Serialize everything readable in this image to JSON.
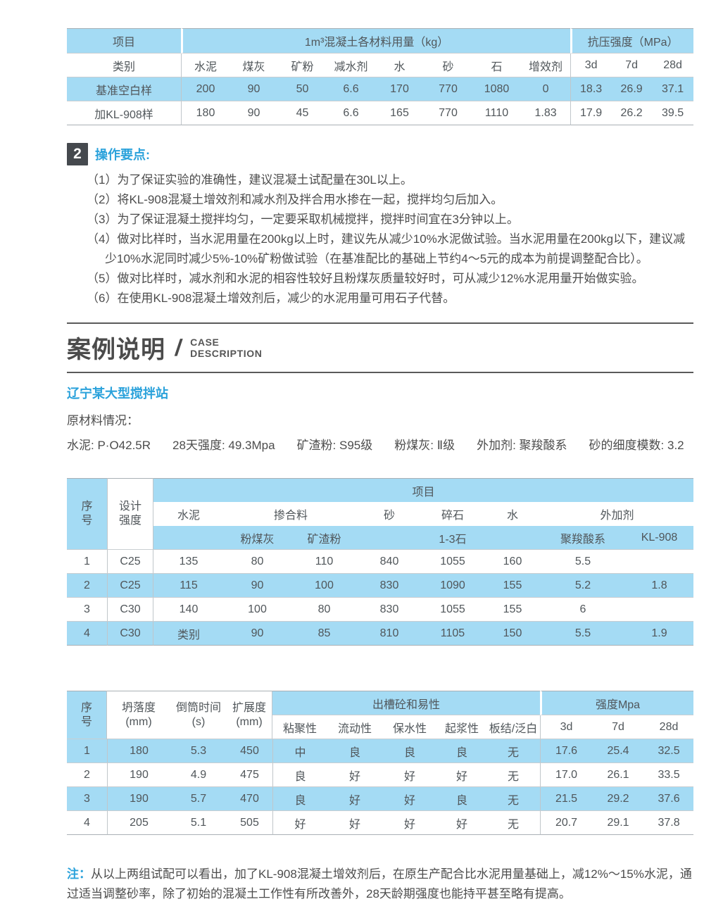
{
  "colors": {
    "band_blue": "#A4DBF4",
    "accent_blue": "#2BA2DB",
    "badge_dark": "#45494E",
    "text_gray": "#4C4C4C"
  },
  "table1": {
    "top_headers": [
      "项目",
      "1m³混凝土各材料用量（kg）",
      "抗压强度（MPa）"
    ],
    "sub_headers": [
      "类别",
      "水泥",
      "煤灰",
      "矿粉",
      "减水剂",
      "水",
      "砂",
      "石",
      "增效剂",
      "3d",
      "7d",
      "28d"
    ],
    "rows": [
      [
        "基准空白样",
        "200",
        "90",
        "50",
        "6.6",
        "170",
        "770",
        "1080",
        "0",
        "18.3",
        "26.9",
        "37.1"
      ],
      [
        "加KL-908样",
        "180",
        "90",
        "45",
        "6.6",
        "165",
        "770",
        "1110",
        "1.83",
        "17.9",
        "26.2",
        "39.5"
      ]
    ]
  },
  "key_points": {
    "badge": "2",
    "title": "操作要点:",
    "items": [
      "（1）为了保证实验的准确性，建议混凝土试配量在30L以上。",
      "（2）将KL-908混凝土增效剂和减水剂及拌合用水掺在一起，搅拌均匀后加入。",
      "（3）为了保证混凝土搅拌均匀，一定要采取机械搅拌，搅拌时间宜在3分钟以上。",
      "（4）做对比样时，当水泥用量在200kg以上时，建议先从减少10%水泥做试验。当水泥用量在200kg以下，建议减少10%水泥同时减少5%-10%矿粉做试验（在基准配比的基础上节约4～5元的成本为前提调整配合比）。",
      "（5）做对比样时，减水剂和水泥的相容性较好且粉煤灰质量较好时，可从减少12%水泥用量开始做实验。",
      "（6）在使用KL-908混凝土增效剂后，减少的水泥用量可用石子代替。"
    ]
  },
  "case_section": {
    "title_cn": "案例说明",
    "slash": "/",
    "title_en_line1": "CASE",
    "title_en_line2": "DESCRIPTION"
  },
  "case": {
    "station": "辽宁某大型搅拌站",
    "materials_label": "原材料情况：",
    "materials": [
      "水泥: P·O42.5R",
      "28天强度: 49.3Mpa",
      "矿渣粉: S95级",
      "粉煤灰: Ⅱ级",
      "外加剂: 聚羧酸系",
      "砂的细度模数: 3.2"
    ]
  },
  "table2": {
    "h_seq": "序\n号",
    "h_design": "设计\n强度",
    "h_project": "项目",
    "group_headers": [
      "水泥",
      "掺合料",
      "砂",
      "碎石",
      "水",
      "外加剂"
    ],
    "sub_headers": [
      "粉煤灰",
      "矿渣粉",
      "1-3石",
      "聚羧酸系",
      "KL-908"
    ],
    "rows": [
      [
        "1",
        "C25",
        "135",
        "80",
        "110",
        "840",
        "1055",
        "160",
        "5.5",
        ""
      ],
      [
        "2",
        "C25",
        "115",
        "90",
        "100",
        "830",
        "1090",
        "155",
        "5.2",
        "1.8"
      ],
      [
        "3",
        "C30",
        "140",
        "100",
        "80",
        "830",
        "1055",
        "155",
        "6",
        ""
      ],
      [
        "4",
        "C30",
        "类别",
        "90",
        "85",
        "810",
        "1105",
        "150",
        "5.5",
        "1.9"
      ]
    ]
  },
  "table3": {
    "h_seq": "序\n号",
    "col_headers": [
      "坍落度\n(mm)",
      "倒筒时间\n(s)",
      "扩展度\n(mm)"
    ],
    "h_workability": "出槽砼和易性",
    "h_strength": "强度Mpa",
    "sub_headers": [
      "粘聚性",
      "流动性",
      "保水性",
      "起浆性",
      "板结/泛白",
      "3d",
      "7d",
      "28d"
    ],
    "rows": [
      [
        "1",
        "180",
        "5.3",
        "450",
        "中",
        "良",
        "良",
        "良",
        "无",
        "17.6",
        "25.4",
        "32.5"
      ],
      [
        "2",
        "190",
        "4.9",
        "475",
        "良",
        "好",
        "好",
        "好",
        "无",
        "17.0",
        "26.1",
        "33.5"
      ],
      [
        "3",
        "190",
        "5.7",
        "470",
        "良",
        "好",
        "好",
        "良",
        "无",
        "21.5",
        "29.2",
        "37.6"
      ],
      [
        "4",
        "205",
        "5.1",
        "505",
        "好",
        "好",
        "好",
        "好",
        "无",
        "20.7",
        "29.1",
        "37.8"
      ]
    ]
  },
  "note": {
    "label": "注：",
    "text": "从以上两组试配可以看出，加了KL-908混凝土增效剂后，在原生产配合比水泥用量基础上，减12%～15%水泥，通过适当调整砂率，除了初始的混凝土工作性有所改善外，28天龄期强度也能持平甚至略有提高。"
  }
}
